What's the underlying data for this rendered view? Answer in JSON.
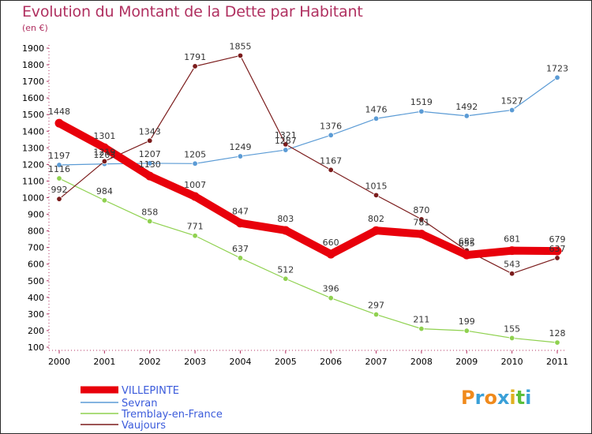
{
  "chart_data": {
    "type": "line",
    "title": "Evolution du Montant de la Dette par Habitant",
    "subtitle": "(en €)",
    "x": [
      "2000",
      "2001",
      "2002",
      "2003",
      "2004",
      "2005",
      "2006",
      "2007",
      "2008",
      "2009",
      "2010",
      "2011"
    ],
    "ylim": [
      100,
      1900
    ],
    "yticks": [
      100,
      200,
      300,
      400,
      500,
      600,
      700,
      800,
      900,
      1000,
      1100,
      1200,
      1300,
      1400,
      1500,
      1600,
      1700,
      1800,
      1900
    ],
    "grid": false,
    "legend_position": "bottom-left",
    "series": [
      {
        "name": "VILLEPINTE",
        "color": "#e8000b",
        "values": [
          1448,
          1301,
          1130,
          1007,
          847,
          803,
          660,
          802,
          781,
          655,
          681,
          679
        ]
      },
      {
        "name": "Sevran",
        "color": "#5b9bd5",
        "values": [
          1197,
          1203,
          1207,
          1205,
          1249,
          1287,
          1376,
          1476,
          1519,
          1492,
          1527,
          1723
        ]
      },
      {
        "name": "Tremblay-en-France",
        "color": "#8fd14f",
        "values": [
          1116,
          984,
          858,
          771,
          637,
          512,
          396,
          297,
          211,
          199,
          155,
          128
        ]
      },
      {
        "name": "Vaujours",
        "color": "#7b1c1c",
        "values": [
          992,
          1219,
          1343,
          1791,
          1855,
          1321,
          1167,
          1015,
          870,
          682,
          543,
          637
        ]
      }
    ]
  },
  "logo": {
    "text": "Proxiti"
  }
}
